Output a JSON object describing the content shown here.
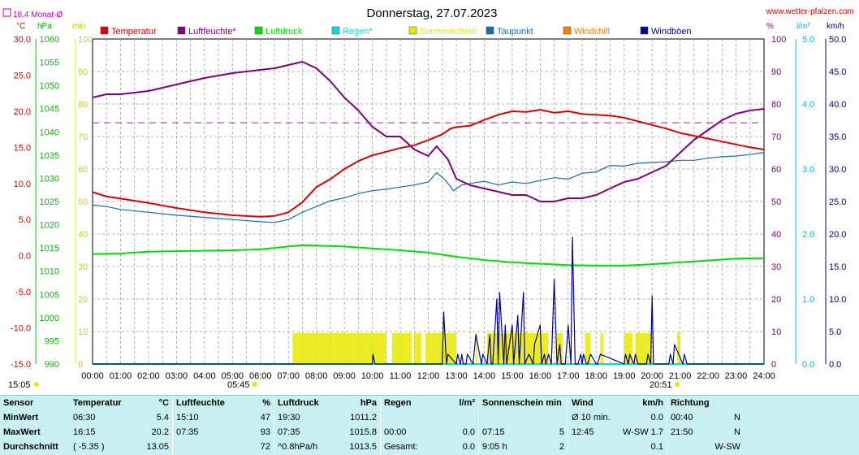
{
  "header": {
    "title": "Donnerstag, 27.07.2023",
    "site": "www.wetter-pfalzen.com",
    "avg_label": "18.4 Monat-Ø"
  },
  "axes": {
    "left_units": [
      "°C",
      "hPa",
      "min"
    ],
    "right_units": [
      "%",
      "l/m²",
      "km/h"
    ],
    "temp_ticks": [
      "30.0",
      "25.0",
      "20.0",
      "15.0",
      "10.0",
      "5.0",
      "0.0",
      "-5.0",
      "-10.0",
      "-15.0"
    ],
    "press_ticks": [
      "1060",
      "1055",
      "1050",
      "1045",
      "1040",
      "1035",
      "1030",
      "1025",
      "1020",
      "1015",
      "1010",
      "1005",
      "1000",
      "995",
      "990"
    ],
    "min_ticks": [
      "100",
      "90",
      "80",
      "70",
      "60",
      "50",
      "40",
      "30",
      "20",
      "10",
      "0"
    ],
    "hum_ticks": [
      "100",
      "90",
      "80",
      "70",
      "60",
      "50",
      "40",
      "30",
      "20",
      "10",
      "0"
    ],
    "rain_ticks": [
      "5.0",
      "4.0",
      "3.0",
      "2.0",
      "1.0",
      "0.0"
    ],
    "wind_ticks": [
      "50.0",
      "45.0",
      "40.0",
      "35.0",
      "30.0",
      "25.0",
      "20.0",
      "15.0",
      "10.0",
      "5.0",
      "0.0"
    ],
    "x_ticks": [
      "00:00",
      "01:00",
      "02:00",
      "03:00",
      "04:00",
      "05:00",
      "06:00",
      "07:00",
      "08:00",
      "09:00",
      "10:00",
      "11:00",
      "12:00",
      "13:00",
      "14:00",
      "15:00",
      "16:00",
      "17:00",
      "18:00",
      "19:00",
      "20:00",
      "21:00",
      "22:00",
      "23:00",
      "24:00"
    ],
    "sunrise": "05:45",
    "sunset": "20:51",
    "day_length": "15:05"
  },
  "legend": [
    {
      "name": "Temperatur",
      "color": "#e00000"
    },
    {
      "name": "Luftfeuchte*",
      "color": "#800080"
    },
    {
      "name": "Luftdruck",
      "color": "#00e000"
    },
    {
      "name": "Regen*",
      "color": "#00e0e0"
    },
    {
      "name": "Sonnenschein",
      "color": "#e8e800"
    },
    {
      "name": "Taupunkt",
      "color": "#1070b0"
    },
    {
      "name": "Windchill",
      "color": "#ff8000"
    },
    {
      "name": "Windböen",
      "color": "#000090"
    }
  ],
  "chart_data": {
    "type": "line",
    "title": "Donnerstag, 27.07.2023",
    "x_unit": "hour",
    "xlim": [
      0,
      24
    ],
    "temp_ylim": [
      -15,
      30
    ],
    "press_ylim": [
      990,
      1060
    ],
    "hum_ylim": [
      0,
      100
    ],
    "wind_ylim": [
      0,
      50
    ],
    "monthly_avg_temp": 18.4,
    "series": [
      {
        "name": "Temperatur",
        "unit": "°C",
        "axis": "temp",
        "x": [
          0,
          0.5,
          1,
          2,
          3,
          4,
          5,
          6,
          6.5,
          7,
          7.5,
          8,
          8.5,
          9,
          9.5,
          10,
          10.5,
          11,
          11.5,
          12,
          12.5,
          12.8,
          13,
          13.5,
          14,
          14.5,
          15,
          15.5,
          16,
          16.5,
          17,
          17.5,
          18,
          18.5,
          19,
          19.5,
          20,
          20.5,
          21,
          21.5,
          22,
          22.5,
          23,
          23.5,
          24
        ],
        "y": [
          8.8,
          8.2,
          7.9,
          7.3,
          6.6,
          6.0,
          5.6,
          5.4,
          5.5,
          6.0,
          7.4,
          9.5,
          10.6,
          12.0,
          13.1,
          13.9,
          14.4,
          14.9,
          15.3,
          16.0,
          16.8,
          17.6,
          17.8,
          18.0,
          18.8,
          19.5,
          20.0,
          19.9,
          20.2,
          19.8,
          20.0,
          19.6,
          19.5,
          19.4,
          19.1,
          18.6,
          18.1,
          17.6,
          17.0,
          16.6,
          16.2,
          15.8,
          15.4,
          15.0,
          14.7
        ]
      },
      {
        "name": "Luftfeuchte*",
        "unit": "%",
        "axis": "hum",
        "x": [
          0,
          0.5,
          1,
          2,
          3,
          4,
          5,
          6,
          6.5,
          7,
          7.5,
          8,
          8.5,
          9,
          9.5,
          10,
          10.5,
          11,
          11.5,
          12,
          12.3,
          12.7,
          13,
          13.5,
          14,
          14.5,
          15,
          15.5,
          16,
          16.5,
          17,
          17.5,
          18,
          18.5,
          19,
          19.5,
          20,
          20.5,
          21,
          21.5,
          22,
          22.5,
          23,
          23.5,
          24
        ],
        "y": [
          82,
          83,
          83,
          84,
          86,
          88,
          89.5,
          90.5,
          91,
          92,
          93,
          91,
          87,
          82,
          78,
          73,
          70,
          70,
          66,
          64,
          67,
          63,
          57,
          55,
          54,
          53,
          52,
          52,
          50,
          50,
          51,
          51,
          52,
          54,
          56,
          57,
          59,
          61,
          65,
          69,
          72,
          75,
          77,
          78,
          78.5
        ]
      },
      {
        "name": "Luftdruck",
        "unit": "hPa",
        "axis": "press",
        "x": [
          0,
          1,
          2,
          3,
          4,
          5,
          6,
          7,
          7.5,
          8,
          9,
          10,
          11,
          12,
          13,
          14,
          15,
          16,
          17,
          18,
          19,
          20,
          21,
          22,
          23,
          24
        ],
        "y": [
          1013.7,
          1013.8,
          1014.2,
          1014.3,
          1014.4,
          1014.5,
          1014.7,
          1015.3,
          1015.6,
          1015.5,
          1015.3,
          1014.9,
          1014.5,
          1014.0,
          1013.1,
          1012.4,
          1011.9,
          1011.6,
          1011.3,
          1011.2,
          1011.2,
          1011.5,
          1011.9,
          1012.3,
          1012.7,
          1012.8
        ]
      },
      {
        "name": "Taupunkt",
        "unit": "°C",
        "axis": "temp",
        "x": [
          0,
          0.5,
          1,
          2,
          3,
          4,
          5,
          6,
          6.5,
          7,
          7.5,
          8,
          8.5,
          9,
          9.5,
          10,
          10.5,
          11,
          11.5,
          12,
          12.3,
          12.6,
          12.9,
          13.2,
          13.5,
          14,
          14.5,
          15,
          15.5,
          16,
          16.5,
          17,
          17.5,
          18,
          18.5,
          19,
          19.5,
          20,
          20.5,
          21,
          21.5,
          22,
          22.5,
          23,
          23.5,
          24
        ],
        "y": [
          7.0,
          6.8,
          6.4,
          6.0,
          5.6,
          5.3,
          5.0,
          4.7,
          4.6,
          5.0,
          6.0,
          6.8,
          7.6,
          8.0,
          8.6,
          9.0,
          9.2,
          9.5,
          9.8,
          10.2,
          11.5,
          10.5,
          9.0,
          9.8,
          10.0,
          10.3,
          9.8,
          10.2,
          10.0,
          10.4,
          10.8,
          10.6,
          11.4,
          11.6,
          12.5,
          12.4,
          12.8,
          12.9,
          13.0,
          13.2,
          13.2,
          13.5,
          13.7,
          13.8,
          14.0,
          14.3
        ]
      },
      {
        "name": "Windböen",
        "unit": "km/h",
        "axis": "wind",
        "x": [
          0,
          10,
          10.02,
          10.1,
          12.5,
          12.55,
          12.65,
          12.7,
          13.0,
          13.05,
          13.15,
          13.2,
          13.25,
          13.35,
          13.4,
          13.6,
          13.7,
          13.9,
          13.95,
          14.1,
          14.2,
          14.25,
          14.3,
          14.45,
          14.5,
          14.55,
          14.7,
          14.75,
          14.8,
          14.95,
          15.0,
          15.05,
          15.2,
          15.25,
          15.4,
          15.45,
          15.6,
          15.75,
          15.8,
          16.0,
          16.05,
          16.15,
          16.2,
          16.3,
          16.4,
          16.5,
          16.6,
          16.7,
          16.75,
          16.9,
          17.0,
          17.1,
          17.15,
          17.25,
          17.35,
          17.45,
          17.5,
          17.55,
          17.65,
          17.7,
          17.8,
          18.0,
          18.05,
          18.15,
          19.0,
          19.05,
          19.15,
          19.2,
          19.35,
          19.4,
          19.5,
          19.8,
          19.85,
          19.95,
          20.0,
          20.05,
          20.1,
          20.6,
          20.65,
          20.75,
          20.8,
          21.1,
          21.15,
          21.25,
          21.3,
          24
        ],
        "y": [
          0,
          0,
          1.5,
          0,
          0,
          8,
          0,
          1.5,
          0,
          1.5,
          0,
          1.5,
          0,
          0,
          1.5,
          0,
          4.5,
          0,
          1.5,
          0,
          4.5,
          0,
          0,
          10,
          0,
          11,
          0,
          6,
          0,
          4.5,
          6,
          0,
          7.5,
          0,
          11,
          0,
          1.5,
          0,
          3,
          6,
          0,
          1.5,
          0,
          1.5,
          0,
          13,
          0,
          3,
          0,
          0,
          6,
          0,
          19.5,
          0,
          0,
          1.5,
          0,
          1.5,
          0,
          0,
          1.5,
          0,
          0,
          1.5,
          0,
          1.5,
          0,
          1.5,
          0,
          1.5,
          0,
          0,
          1.5,
          0,
          10.5,
          0,
          0,
          0,
          1.5,
          0,
          3,
          0,
          1.5,
          0,
          0,
          0
        ]
      },
      {
        "name": "Regen*",
        "unit": "l/m²",
        "axis": "rain",
        "x": [
          0,
          24
        ],
        "y": [
          0,
          0
        ]
      },
      {
        "name": "Sonnenschein",
        "unit": "min",
        "axis": "min",
        "periods": [
          [
            7.15,
            10.5
          ],
          [
            10.7,
            11.4
          ],
          [
            11.5,
            11.75
          ],
          [
            11.9,
            12.3
          ],
          [
            12.3,
            13.0
          ],
          [
            13.7,
            13.75
          ],
          [
            14.1,
            16.3
          ],
          [
            16.6,
            16.8
          ],
          [
            17.6,
            17.8
          ],
          [
            18.15,
            18.25
          ],
          [
            19.0,
            19.3
          ],
          [
            19.4,
            20.0
          ],
          [
            20.9,
            21.0
          ]
        ],
        "level_min": 5
      }
    ]
  },
  "stats": {
    "headers": [
      "Sensor",
      "Temperatur",
      "°C",
      "Luftfeuchte",
      "%",
      "Luftdruck",
      "hPa",
      "Regen",
      "l/m²",
      "Sonnenschein min",
      "Wind",
      "km/h",
      "Richtung"
    ],
    "rows": [
      [
        "MinWert",
        "06:30",
        "5.4",
        "15:10",
        "47",
        "19:30",
        "1011.2",
        "",
        "",
        "",
        "Ø 10 min.",
        "0.0",
        "00:40",
        "N"
      ],
      [
        "MaxWert",
        "16:15",
        "20.2",
        "07:35",
        "93",
        "07:35",
        "1015.8",
        "00:00",
        "0.0",
        "07:15",
        "5",
        "12:45",
        "W-SW 1.7",
        "21:50",
        "N"
      ],
      [
        "Durchschnitt",
        "( -5.35 )",
        "13.05",
        "",
        "72",
        "^0.8hPa/h",
        "1013.5",
        "Gesamt:",
        "0.0",
        "9:05 h",
        "2",
        "",
        "0.1",
        "",
        "W-SW"
      ]
    ]
  }
}
